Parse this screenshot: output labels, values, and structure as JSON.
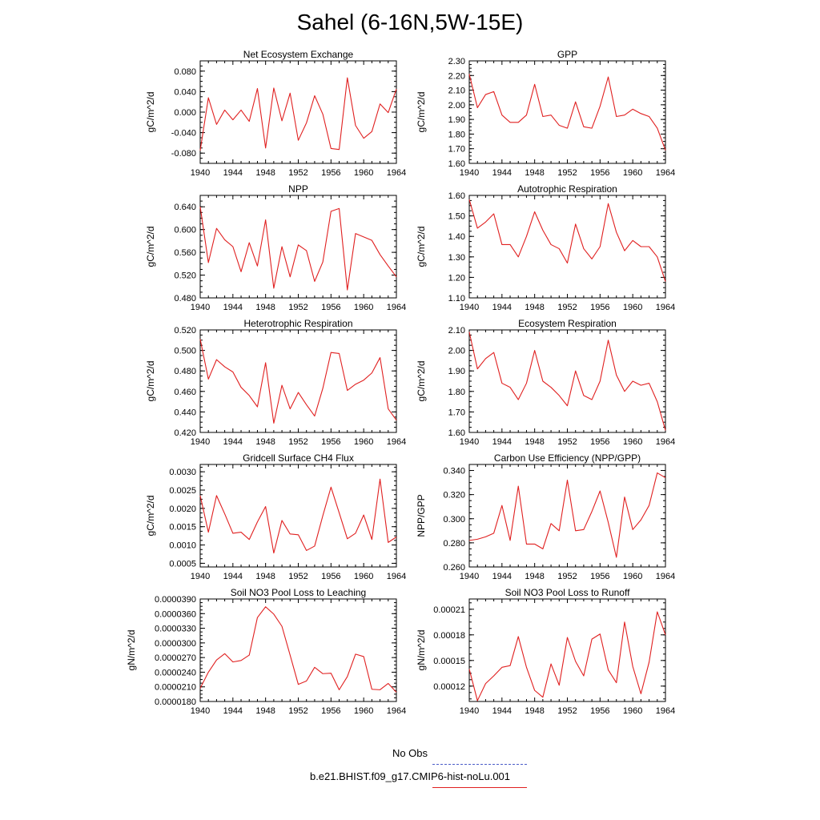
{
  "title": "Sahel (6-16N,5W-15E)",
  "legend": {
    "entries": [
      {
        "label": "No Obs",
        "color": "#4a5cc8",
        "style": "dashed"
      },
      {
        "label": "b.e21.BHIST.f09_g17.CMIP6-hist-noLu.001",
        "color": "#e02020",
        "style": "solid"
      }
    ]
  },
  "chart_data": [
    {
      "type": "line",
      "title": "Net Ecosystem Exchange",
      "ylabel": "gC/m^2/d",
      "xlim": [
        1940,
        1964
      ],
      "ylim": [
        -0.1,
        0.1
      ],
      "xticks": [
        1940,
        1944,
        1948,
        1952,
        1956,
        1960,
        1964
      ],
      "yticks": [
        "-0.080",
        "-0.040",
        "0.000",
        "0.040",
        "0.080"
      ],
      "ytick_values": [
        -0.08,
        -0.04,
        0.0,
        0.04,
        0.08
      ],
      "x": [
        1940,
        1941,
        1942,
        1943,
        1944,
        1945,
        1946,
        1947,
        1948,
        1949,
        1950,
        1951,
        1952,
        1953,
        1954,
        1955,
        1956,
        1957,
        1958,
        1959,
        1960,
        1961,
        1962,
        1963,
        1964
      ],
      "series": [
        {
          "name": "b.e21.BHIST.f09_g17.CMIP6-hist-noLu.001",
          "color": "#e02020",
          "values": [
            -0.075,
            0.028,
            -0.024,
            0.004,
            -0.015,
            0.004,
            -0.018,
            0.046,
            -0.07,
            0.047,
            -0.017,
            0.037,
            -0.055,
            -0.021,
            0.032,
            -0.004,
            -0.071,
            -0.073,
            0.067,
            -0.026,
            -0.051,
            -0.038,
            0.016,
            -0.001,
            0.045
          ]
        }
      ]
    },
    {
      "type": "line",
      "title": "GPP",
      "ylabel": "gC/m^2/d",
      "xlim": [
        1940,
        1964
      ],
      "ylim": [
        1.6,
        2.3
      ],
      "xticks": [
        1940,
        1944,
        1948,
        1952,
        1956,
        1960,
        1964
      ],
      "yticks": [
        "1.60",
        "1.70",
        "1.80",
        "1.90",
        "2.00",
        "2.10",
        "2.20",
        "2.30"
      ],
      "ytick_values": [
        1.6,
        1.7,
        1.8,
        1.9,
        2.0,
        2.1,
        2.2,
        2.3
      ],
      "x": [
        1940,
        1941,
        1942,
        1943,
        1944,
        1945,
        1946,
        1947,
        1948,
        1949,
        1950,
        1951,
        1952,
        1953,
        1954,
        1955,
        1956,
        1957,
        1958,
        1959,
        1960,
        1961,
        1962,
        1963,
        1964
      ],
      "series": [
        {
          "name": "b.e21.BHIST.f09_g17.CMIP6-hist-noLu.001",
          "color": "#e02020",
          "values": [
            2.21,
            1.98,
            2.07,
            2.09,
            1.93,
            1.88,
            1.88,
            1.93,
            2.14,
            1.92,
            1.93,
            1.86,
            1.84,
            2.02,
            1.85,
            1.84,
            1.99,
            2.19,
            1.92,
            1.93,
            1.97,
            1.94,
            1.92,
            1.84,
            1.69
          ]
        }
      ]
    },
    {
      "type": "line",
      "title": "NPP",
      "ylabel": "gC/m^2/d",
      "xlim": [
        1940,
        1964
      ],
      "ylim": [
        0.48,
        0.66
      ],
      "xticks": [
        1940,
        1944,
        1948,
        1952,
        1956,
        1960,
        1964
      ],
      "yticks": [
        "0.480",
        "0.520",
        "0.560",
        "0.600",
        "0.640"
      ],
      "ytick_values": [
        0.48,
        0.52,
        0.56,
        0.6,
        0.64
      ],
      "x": [
        1940,
        1941,
        1942,
        1943,
        1944,
        1945,
        1946,
        1947,
        1948,
        1949,
        1950,
        1951,
        1952,
        1953,
        1954,
        1955,
        1956,
        1957,
        1958,
        1959,
        1960,
        1961,
        1962,
        1963,
        1964
      ],
      "series": [
        {
          "name": "b.e21.BHIST.f09_g17.CMIP6-hist-noLu.001",
          "color": "#e02020",
          "values": [
            0.64,
            0.542,
            0.602,
            0.582,
            0.57,
            0.526,
            0.577,
            0.536,
            0.617,
            0.497,
            0.57,
            0.517,
            0.573,
            0.563,
            0.509,
            0.543,
            0.632,
            0.637,
            0.494,
            0.593,
            0.587,
            0.581,
            0.556,
            0.536,
            0.517
          ]
        }
      ]
    },
    {
      "type": "line",
      "title": "Autotrophic Respiration",
      "ylabel": "gC/m^2/d",
      "xlim": [
        1940,
        1964
      ],
      "ylim": [
        1.1,
        1.6
      ],
      "xticks": [
        1940,
        1944,
        1948,
        1952,
        1956,
        1960,
        1964
      ],
      "yticks": [
        "1.10",
        "1.20",
        "1.30",
        "1.40",
        "1.50",
        "1.60"
      ],
      "ytick_values": [
        1.1,
        1.2,
        1.3,
        1.4,
        1.5,
        1.6
      ],
      "x": [
        1940,
        1941,
        1942,
        1943,
        1944,
        1945,
        1946,
        1947,
        1948,
        1949,
        1950,
        1951,
        1952,
        1953,
        1954,
        1955,
        1956,
        1957,
        1958,
        1959,
        1960,
        1961,
        1962,
        1963,
        1964
      ],
      "series": [
        {
          "name": "b.e21.BHIST.f09_g17.CMIP6-hist-noLu.001",
          "color": "#e02020",
          "values": [
            1.58,
            1.44,
            1.47,
            1.51,
            1.36,
            1.36,
            1.3,
            1.4,
            1.52,
            1.43,
            1.36,
            1.34,
            1.27,
            1.46,
            1.34,
            1.29,
            1.35,
            1.56,
            1.42,
            1.33,
            1.38,
            1.35,
            1.35,
            1.3,
            1.18
          ]
        }
      ]
    },
    {
      "type": "line",
      "title": "Heterotrophic Respiration",
      "ylabel": "gC/m^2/d",
      "xlim": [
        1940,
        1964
      ],
      "ylim": [
        0.42,
        0.52
      ],
      "xticks": [
        1940,
        1944,
        1948,
        1952,
        1956,
        1960,
        1964
      ],
      "yticks": [
        "0.420",
        "0.440",
        "0.460",
        "0.480",
        "0.500",
        "0.520"
      ],
      "ytick_values": [
        0.42,
        0.44,
        0.46,
        0.48,
        0.5,
        0.52
      ],
      "x": [
        1940,
        1941,
        1942,
        1943,
        1944,
        1945,
        1946,
        1947,
        1948,
        1949,
        1950,
        1951,
        1952,
        1953,
        1954,
        1955,
        1956,
        1957,
        1958,
        1959,
        1960,
        1961,
        1962,
        1963,
        1964
      ],
      "series": [
        {
          "name": "b.e21.BHIST.f09_g17.CMIP6-hist-noLu.001",
          "color": "#e02020",
          "values": [
            0.511,
            0.472,
            0.491,
            0.484,
            0.479,
            0.464,
            0.456,
            0.445,
            0.488,
            0.429,
            0.466,
            0.443,
            0.459,
            0.447,
            0.436,
            0.463,
            0.498,
            0.497,
            0.461,
            0.467,
            0.471,
            0.478,
            0.493,
            0.443,
            0.432
          ]
        }
      ]
    },
    {
      "type": "line",
      "title": "Ecosystem Respiration",
      "ylabel": "gC/m^2/d",
      "xlim": [
        1940,
        1964
      ],
      "ylim": [
        1.6,
        2.1
      ],
      "xticks": [
        1940,
        1944,
        1948,
        1952,
        1956,
        1960,
        1964
      ],
      "yticks": [
        "1.60",
        "1.70",
        "1.80",
        "1.90",
        "2.00",
        "2.10"
      ],
      "ytick_values": [
        1.6,
        1.7,
        1.8,
        1.9,
        2.0,
        2.1
      ],
      "x": [
        1940,
        1941,
        1942,
        1943,
        1944,
        1945,
        1946,
        1947,
        1948,
        1949,
        1950,
        1951,
        1952,
        1953,
        1954,
        1955,
        1956,
        1957,
        1958,
        1959,
        1960,
        1961,
        1962,
        1963,
        1964
      ],
      "series": [
        {
          "name": "b.e21.BHIST.f09_g17.CMIP6-hist-noLu.001",
          "color": "#e02020",
          "values": [
            2.09,
            1.91,
            1.96,
            1.99,
            1.84,
            1.82,
            1.76,
            1.84,
            2.0,
            1.85,
            1.82,
            1.78,
            1.73,
            1.9,
            1.78,
            1.76,
            1.85,
            2.05,
            1.88,
            1.8,
            1.85,
            1.83,
            1.84,
            1.75,
            1.61
          ]
        }
      ]
    },
    {
      "type": "line",
      "title": "Gridcell Surface CH4 Flux",
      "ylabel": "gC/m^2/d",
      "xlim": [
        1940,
        1964
      ],
      "ylim": [
        0.0004,
        0.0032
      ],
      "xticks": [
        1940,
        1944,
        1948,
        1952,
        1956,
        1960,
        1964
      ],
      "yticks": [
        "0.0005",
        "0.0010",
        "0.0015",
        "0.0020",
        "0.0025",
        "0.0030"
      ],
      "ytick_values": [
        0.0005,
        0.001,
        0.0015,
        0.002,
        0.0025,
        0.003
      ],
      "x": [
        1940,
        1941,
        1942,
        1943,
        1944,
        1945,
        1946,
        1947,
        1948,
        1949,
        1950,
        1951,
        1952,
        1953,
        1954,
        1955,
        1956,
        1957,
        1958,
        1959,
        1960,
        1961,
        1962,
        1963,
        1964
      ],
      "series": [
        {
          "name": "b.e21.BHIST.f09_g17.CMIP6-hist-noLu.001",
          "color": "#e02020",
          "values": [
            0.00235,
            0.00135,
            0.00235,
            0.00185,
            0.00132,
            0.00135,
            0.00115,
            0.00163,
            0.00205,
            0.00078,
            0.00167,
            0.0013,
            0.00128,
            0.00085,
            0.00097,
            0.0018,
            0.00258,
            0.00188,
            0.00117,
            0.00132,
            0.00182,
            0.00115,
            0.0028,
            0.00107,
            0.00122
          ]
        }
      ]
    },
    {
      "type": "line",
      "title": "Carbon Use Efficiency (NPP/GPP)",
      "ylabel": "NPP/GPP",
      "xlim": [
        1940,
        1964
      ],
      "ylim": [
        0.26,
        0.345
      ],
      "xticks": [
        1940,
        1944,
        1948,
        1952,
        1956,
        1960,
        1964
      ],
      "yticks": [
        "0.260",
        "0.280",
        "0.300",
        "0.320",
        "0.340"
      ],
      "ytick_values": [
        0.26,
        0.28,
        0.3,
        0.32,
        0.34
      ],
      "x": [
        1940,
        1941,
        1942,
        1943,
        1944,
        1945,
        1946,
        1947,
        1948,
        1949,
        1950,
        1951,
        1952,
        1953,
        1954,
        1955,
        1956,
        1957,
        1958,
        1959,
        1960,
        1961,
        1962,
        1963,
        1964
      ],
      "series": [
        {
          "name": "b.e21.BHIST.f09_g17.CMIP6-hist-noLu.001",
          "color": "#e02020",
          "values": [
            0.282,
            0.283,
            0.285,
            0.288,
            0.311,
            0.282,
            0.327,
            0.279,
            0.279,
            0.275,
            0.296,
            0.29,
            0.332,
            0.29,
            0.291,
            0.306,
            0.323,
            0.297,
            0.268,
            0.318,
            0.291,
            0.299,
            0.311,
            0.338,
            0.334
          ]
        }
      ]
    },
    {
      "type": "line",
      "title": "Soil NO3 Pool Loss to Leaching",
      "ylabel": "gN/m^2/d",
      "xlim": [
        1940,
        1964
      ],
      "ylim": [
        1.8e-05,
        3.9e-05
      ],
      "xticks": [
        1940,
        1944,
        1948,
        1952,
        1956,
        1960,
        1964
      ],
      "yticks": [
        "0.0000180",
        "0.0000210",
        "0.0000240",
        "0.0000270",
        "0.0000300",
        "0.0000330",
        "0.0000360",
        "0.0000390"
      ],
      "ytick_values": [
        1.8e-05,
        2.1e-05,
        2.4e-05,
        2.7e-05,
        3e-05,
        3.3e-05,
        3.6e-05,
        3.9e-05
      ],
      "x": [
        1940,
        1941,
        1942,
        1943,
        1944,
        1945,
        1946,
        1947,
        1948,
        1949,
        1950,
        1951,
        1952,
        1953,
        1954,
        1955,
        1956,
        1957,
        1958,
        1959,
        1960,
        1961,
        1962,
        1963,
        1964
      ],
      "series": [
        {
          "name": "b.e21.BHIST.f09_g17.CMIP6-hist-noLu.001",
          "color": "#e02020",
          "values": [
            2.07e-05,
            2.4e-05,
            2.65e-05,
            2.78e-05,
            2.61e-05,
            2.64e-05,
            2.75e-05,
            3.52e-05,
            3.74e-05,
            3.59e-05,
            3.34e-05,
            2.75e-05,
            2.15e-05,
            2.22e-05,
            2.5e-05,
            2.37e-05,
            2.38e-05,
            2.04e-05,
            2.31e-05,
            2.77e-05,
            2.72e-05,
            2.05e-05,
            2.04e-05,
            2.17e-05,
            1.99e-05
          ]
        }
      ]
    },
    {
      "type": "line",
      "title": "Soil NO3 Pool Loss to Runoff",
      "ylabel": "gN/m^2/d",
      "xlim": [
        1940,
        1964
      ],
      "ylim": [
        0.000102,
        0.000222
      ],
      "xticks": [
        1940,
        1944,
        1948,
        1952,
        1956,
        1960,
        1964
      ],
      "yticks": [
        "0.00012",
        "0.00015",
        "0.00018",
        "0.00021"
      ],
      "ytick_values": [
        0.00012,
        0.00015,
        0.00018,
        0.00021
      ],
      "x": [
        1940,
        1941,
        1942,
        1943,
        1944,
        1945,
        1946,
        1947,
        1948,
        1949,
        1950,
        1951,
        1952,
        1953,
        1954,
        1955,
        1956,
        1957,
        1958,
        1959,
        1960,
        1961,
        1962,
        1963,
        1964
      ],
      "series": [
        {
          "name": "b.e21.BHIST.f09_g17.CMIP6-hist-noLu.001",
          "color": "#e02020",
          "values": [
            0.00014,
            0.000103,
            0.000123,
            0.000132,
            0.000142,
            0.000144,
            0.000178,
            0.000142,
            0.000115,
            0.000107,
            0.000146,
            0.000121,
            0.000177,
            0.000149,
            0.000132,
            0.000175,
            0.000181,
            0.000139,
            0.000124,
            0.000195,
            0.000143,
            0.000111,
            0.000148,
            0.000207,
            0.00018
          ]
        }
      ]
    }
  ]
}
